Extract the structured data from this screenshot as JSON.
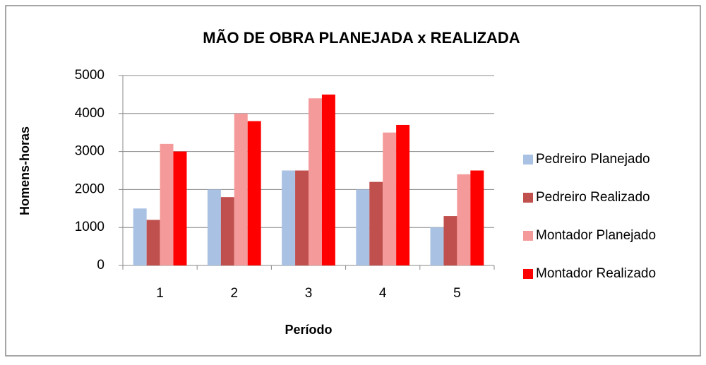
{
  "chart_data": {
    "type": "bar",
    "title": "MÃO DE OBRA PLANEJADA x REALIZADA",
    "x_label": "Período",
    "y_label": "Homens-horas",
    "categories": [
      "1",
      "2",
      "3",
      "4",
      "5"
    ],
    "series": [
      {
        "name": "Pedreiro Planejado",
        "color": "#a9c1e3",
        "values": [
          1500,
          2000,
          2500,
          2000,
          1000
        ]
      },
      {
        "name": "Pedreiro Realizado",
        "color": "#c0504d",
        "values": [
          1200,
          1800,
          2500,
          2200,
          1300
        ]
      },
      {
        "name": "Montador Planejado",
        "color": "#f59a9a",
        "values": [
          3200,
          4000,
          4400,
          3500,
          2400
        ]
      },
      {
        "name": "Montador Realizado",
        "color": "#ff0000",
        "values": [
          3000,
          3800,
          4500,
          3700,
          2500
        ]
      }
    ],
    "ylim": [
      0,
      5000
    ],
    "yticks": [
      0,
      1000,
      2000,
      3000,
      4000,
      5000
    ],
    "grid": true,
    "legend": "right"
  }
}
